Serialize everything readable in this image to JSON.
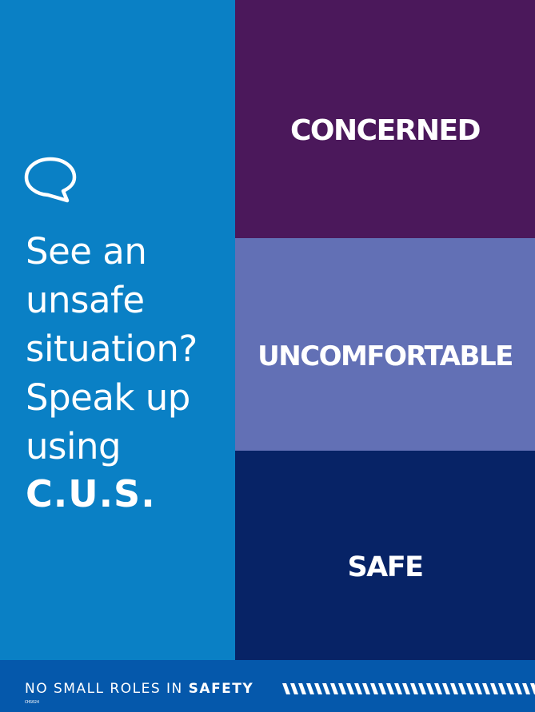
{
  "headline": {
    "lines": [
      "See an",
      "unsafe",
      "situation?",
      "Speak up",
      "using"
    ],
    "emphasis": "C.U.S."
  },
  "panels": [
    {
      "label": "CONCERNED",
      "color": "#4b185b"
    },
    {
      "label": "UNCOMFORTABLE",
      "color": "#6270b5"
    },
    {
      "label": "SAFE",
      "color": "#072366"
    }
  ],
  "footer": {
    "tagline_prefix": "NO SMALL ROLES IN ",
    "tagline_emphasis": "SAFETY",
    "code": "CHS024"
  },
  "colors": {
    "left_panel": "#0a80c5",
    "footer": "#0558ab",
    "text": "#ffffff"
  },
  "icons": {
    "speech_bubble": "speech-bubble-icon",
    "stripes": "hazard-stripes"
  }
}
